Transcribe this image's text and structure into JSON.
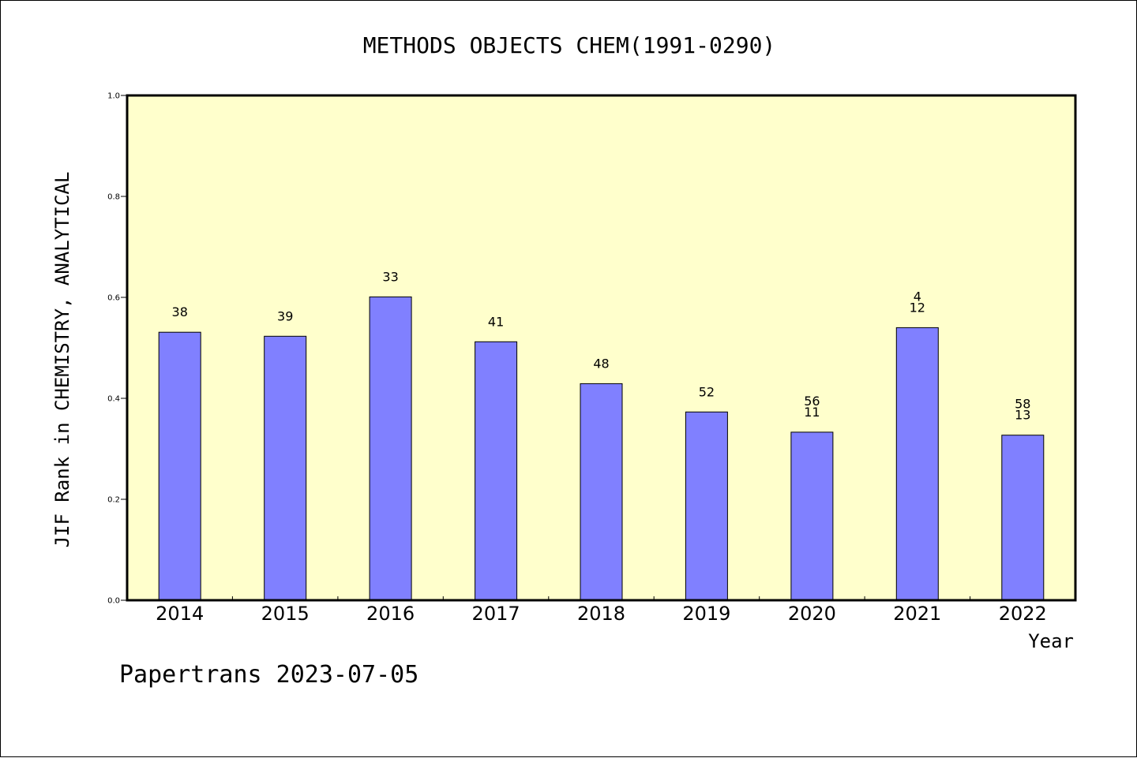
{
  "figure": {
    "title": "METHODS OBJECTS CHEM(1991-0290)",
    "footer": "Papertrans 2023-07-05"
  },
  "colors": {
    "plot_background": "#ffffcc",
    "bar_fill": "#8080ff",
    "bar_stroke": "#000000",
    "axis": "#000000"
  },
  "chart_data": {
    "type": "bar",
    "title": "METHODS OBJECTS CHEM(1991-0290)",
    "xlabel": "Year",
    "ylabel": "JIF Rank in CHEMISTRY, ANALYTICAL",
    "ylim": [
      0,
      1.0
    ],
    "yticks": [
      "0.0",
      "0.2",
      "0.4",
      "0.6",
      "0.8",
      "1.0"
    ],
    "grid": false,
    "categories": [
      "2014",
      "2015",
      "2016",
      "2017",
      "2018",
      "2019",
      "2020",
      "2021",
      "2022"
    ],
    "values": [
      0.531,
      0.523,
      0.601,
      0.512,
      0.429,
      0.373,
      0.333,
      0.54,
      0.327
    ],
    "bar_labels": [
      [
        "38"
      ],
      [
        "39"
      ],
      [
        "33"
      ],
      [
        "41"
      ],
      [
        "48"
      ],
      [
        "52"
      ],
      [
        "56",
        "11"
      ],
      [
        "4",
        "12"
      ],
      [
        "58",
        "13"
      ]
    ]
  }
}
